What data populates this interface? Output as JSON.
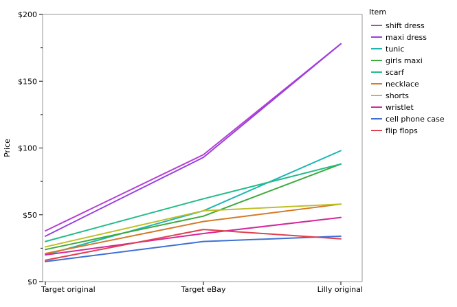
{
  "chart_data": {
    "type": "line",
    "title": "",
    "xlabel": "",
    "ylabel": "Price",
    "categories": [
      "Target original",
      "Target eBay",
      "Lilly original"
    ],
    "ylim": [
      0,
      200
    ],
    "yticks": [
      0,
      50,
      100,
      150,
      200
    ],
    "ytick_labels": [
      "$0",
      "$50",
      "$100",
      "$150",
      "$200"
    ],
    "grid": false,
    "legend": {
      "title": "Item",
      "position": "right"
    },
    "series": [
      {
        "name": "shift dress",
        "color": "#B53FD1",
        "values": [
          38,
          95,
          178
        ]
      },
      {
        "name": "maxi dress",
        "color": "#9A3FE0",
        "values": [
          34,
          93,
          178
        ]
      },
      {
        "name": "tunic",
        "color": "#1BB5B5",
        "values": [
          20,
          53,
          98
        ]
      },
      {
        "name": "girls maxi",
        "color": "#3DAA3D",
        "values": [
          24,
          49,
          88
        ]
      },
      {
        "name": "scarf",
        "color": "#22BB88",
        "values": [
          30,
          62,
          88
        ]
      },
      {
        "name": "necklace",
        "color": "#D47A28",
        "values": [
          21,
          45,
          58
        ]
      },
      {
        "name": "shorts",
        "color": "#BFBF28",
        "values": [
          26,
          53,
          58
        ]
      },
      {
        "name": "wristlet",
        "color": "#D4289A",
        "values": [
          20,
          36,
          48
        ]
      },
      {
        "name": "cell phone case",
        "color": "#3F6FD4",
        "values": [
          15,
          30,
          34
        ]
      },
      {
        "name": "flip flops",
        "color": "#E0404F",
        "values": [
          16,
          39,
          32
        ]
      }
    ]
  }
}
